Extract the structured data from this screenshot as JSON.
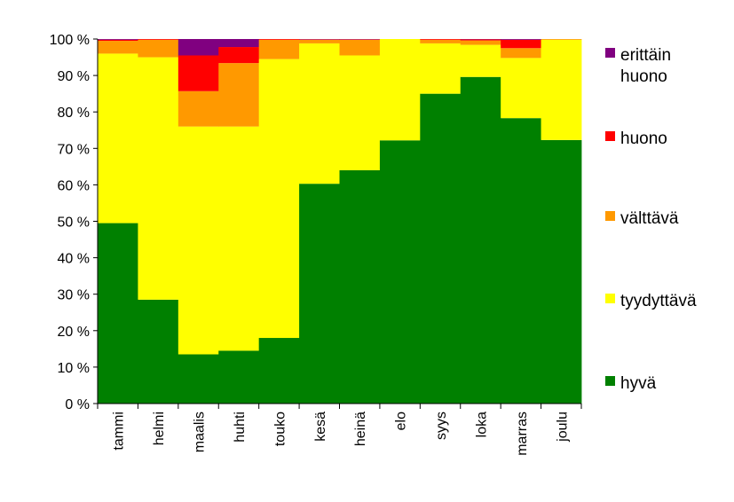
{
  "chart_data": {
    "type": "bar",
    "stacked": true,
    "stacking": "percent",
    "categories": [
      "tammi",
      "helmi",
      "maalis",
      "huhti",
      "touko",
      "kesä",
      "heinä",
      "elo",
      "syys",
      "loka",
      "marras",
      "joulu"
    ],
    "series": [
      {
        "name": "hyvä",
        "color": "#008000",
        "values": [
          49.5,
          28.5,
          13.5,
          14.5,
          18,
          60.3,
          64,
          72.2,
          85,
          89.6,
          78.3,
          72.3
        ]
      },
      {
        "name": "tyydyttävä",
        "color": "#ffff00",
        "values": [
          46.5,
          66.5,
          62.5,
          61.5,
          76.5,
          38.5,
          31.5,
          27.8,
          13.8,
          8.8,
          16.5,
          27.5
        ]
      },
      {
        "name": "välttävä",
        "color": "#ff9900",
        "values": [
          3.5,
          4.8,
          9.7,
          17.4,
          5.3,
          1.0,
          4.3,
          0,
          1.0,
          1.2,
          2.7,
          0.2
        ]
      },
      {
        "name": "huono",
        "color": "#ff0000",
        "values": [
          0.3,
          0.2,
          9.8,
          4.4,
          0.2,
          0.1,
          0.1,
          0,
          0.2,
          0.3,
          2.3,
          0
        ]
      },
      {
        "name": "erittäin\nhuono",
        "color": "#800080",
        "values": [
          0.2,
          0,
          4.5,
          2.2,
          0,
          0.1,
          0.1,
          0,
          0,
          0.1,
          0.2,
          0
        ]
      }
    ],
    "yticks": [
      "0 %",
      "10 %",
      "20 %",
      "30 %",
      "40 %",
      "50 %",
      "60 %",
      "70 %",
      "80 %",
      "90 %",
      "100 %"
    ],
    "ylim": [
      0,
      100
    ],
    "grid": false,
    "legend_position": "right",
    "legend_order": [
      "erittäin\nhuono",
      "huono",
      "välttävä",
      "tyydyttävä",
      "hyvä"
    ]
  }
}
